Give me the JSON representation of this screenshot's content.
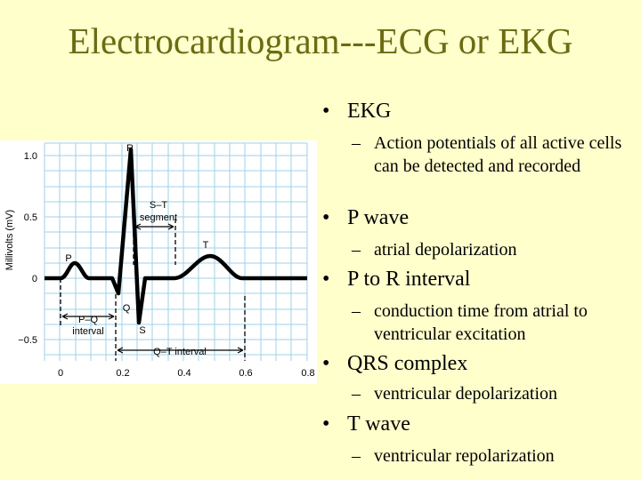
{
  "title": "Electrocardiogram---ECG or EKG",
  "figure": {
    "y_label": "Millivolts (mV)",
    "yticks": [
      "1.0",
      "0.5",
      "0",
      "−0.5"
    ],
    "xticks": [
      "0",
      "0.2",
      "0.4",
      "0.6",
      "0.8"
    ],
    "waves": {
      "p": "P",
      "q": "Q",
      "r": "R",
      "s": "S",
      "t": "T"
    },
    "st_segment": [
      "S–T",
      "segment"
    ],
    "pq_interval": [
      "P–Q",
      "interval"
    ],
    "qt_interval": "Q–T interval"
  },
  "bullets": [
    {
      "text": "EKG",
      "sub": "Action potentials of all active cells can be detected and recorded"
    },
    {
      "text": "P wave",
      "sub": "atrial depolarization"
    },
    {
      "text": "P to R interval",
      "sub": "conduction time from atrial to ventricular excitation"
    },
    {
      "text": "QRS complex",
      "sub": "ventricular depolarization"
    },
    {
      "text": "T wave",
      "sub": "ventricular repolarization"
    }
  ]
}
